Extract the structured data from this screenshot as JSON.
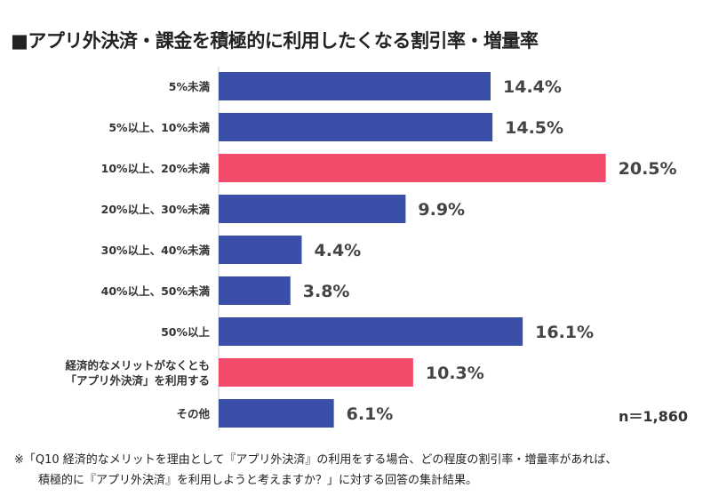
{
  "chart_data": {
    "type": "bar",
    "orientation": "horizontal",
    "title": "■アプリ外決済・課金を積極的に利用したくなる割引率・増量率",
    "categories": [
      "5%未満",
      "5%以上、10%未満",
      "10%以上、20%未満",
      "20%以上、30%未満",
      "30%以上、40%未満",
      "40%以上、50%未満",
      "50%以上",
      "経済的なメリットがなくとも\n「アプリ外決済」を利用する",
      "その他"
    ],
    "values": [
      14.4,
      14.5,
      20.5,
      9.9,
      4.4,
      3.8,
      16.1,
      10.3,
      6.1
    ],
    "data_labels": [
      "14.4%",
      "14.5%",
      "20.5%",
      "9.9%",
      "4.4%",
      "3.8%",
      "16.1%",
      "10.3%",
      "6.1%"
    ],
    "highlighted": [
      false,
      false,
      true,
      false,
      false,
      false,
      false,
      true,
      false
    ],
    "colors": {
      "default": "#3a4fa8",
      "highlight": "#f24a6b"
    },
    "xlim": [
      0,
      25
    ],
    "grid": false,
    "sample_size": "n＝1,860"
  },
  "footnote": {
    "line1": "※「Q10 経済的なメリットを理由として『アプリ外決済』の利用をする場合、どの程度の割引率・増量率があれば、",
    "line2": "積極的に『アプリ外決済』を利用しようと考えますか？」に対する回答の集計結果。"
  }
}
